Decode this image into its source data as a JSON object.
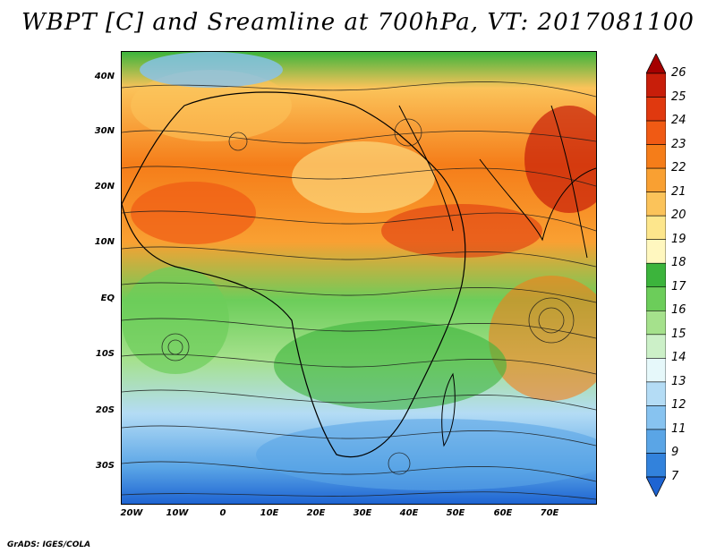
{
  "title": "WBPT [C] and Sreamline at 700hPa, VT: 2017081100",
  "footer": "GrADS: IGES/COLA",
  "lat_labels": [
    "40N",
    "30N",
    "20N",
    "10N",
    "EQ",
    "10S",
    "20S",
    "30S"
  ],
  "lon_labels": [
    "20W",
    "10W",
    "0",
    "10E",
    "20E",
    "30E",
    "40E",
    "50E",
    "60E",
    "70E"
  ],
  "colorbar": {
    "labels": [
      "26",
      "25",
      "24",
      "23",
      "22",
      "21",
      "20",
      "19",
      "18",
      "17",
      "16",
      "15",
      "14",
      "13",
      "12",
      "11",
      "9",
      "7"
    ],
    "colors": [
      "#a50000",
      "#c81e0a",
      "#e0390f",
      "#f05a14",
      "#f57d19",
      "#f9a032",
      "#fbc35a",
      "#fde68c",
      "#fff7bf",
      "#3cb43c",
      "#6ccd5a",
      "#a5e18c",
      "#ccf0c8",
      "#e6f8fa",
      "#b4dcf5",
      "#87c3f0",
      "#5aa5e6",
      "#3282dc",
      "#1e64d2"
    ]
  },
  "colors": {
    "frame": "#000000",
    "streamline": "#1a1a1a"
  }
}
